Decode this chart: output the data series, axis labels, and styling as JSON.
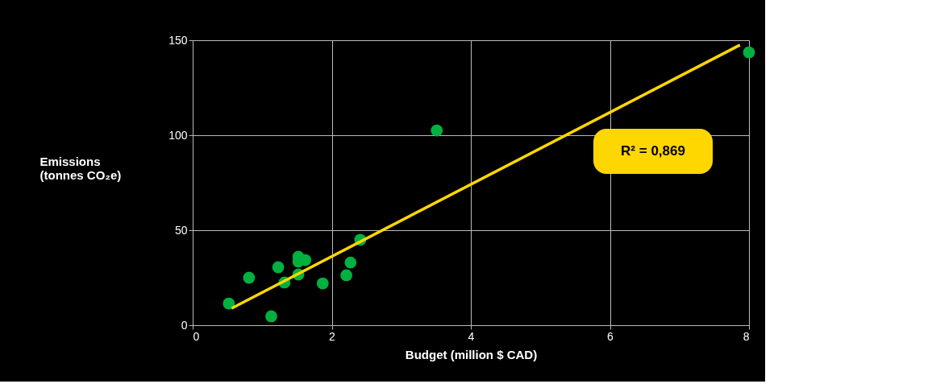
{
  "chart_data": {
    "type": "scatter",
    "xlabel": "Budget (million $ CAD)",
    "ylabel": "Emissions\n(tonnes CO₂e)",
    "xlim": [
      0,
      8
    ],
    "xticks": [
      0,
      2,
      4,
      6,
      8
    ],
    "ylim": [
      0,
      150
    ],
    "yticks": [
      0,
      50,
      100,
      150
    ],
    "grid": true,
    "series": [
      {
        "marker": "circle",
        "color": "#00b140",
        "x": [
          0.52,
          0.81,
          1.13,
          1.23,
          1.32,
          1.52,
          1.52,
          1.62,
          1.52,
          1.87,
          2.21,
          2.27,
          2.41,
          3.51,
          8.0
        ],
        "values": [
          11.4,
          25,
          4.7,
          30.5,
          22.5,
          36,
          33.5,
          34.3,
          26.7,
          22,
          26.3,
          33,
          45,
          102.5,
          143.6
        ]
      },
      {
        "type": "line",
        "color": "#ffd700",
        "x": [
          0.56,
          7.87
        ],
        "values": [
          8.9,
          147.5
        ]
      }
    ],
    "annotations": [
      "R² = 0,869"
    ]
  }
}
